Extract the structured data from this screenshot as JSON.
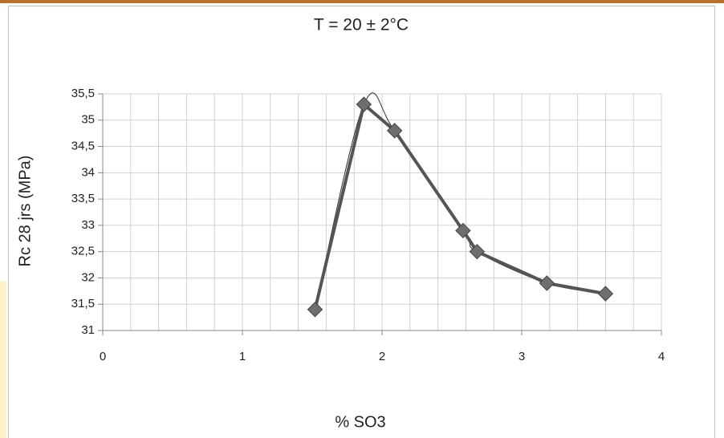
{
  "chart_data": {
    "type": "line",
    "title": "T = 20 ± 2°C",
    "xlabel": "% SO3",
    "ylabel": "Rc 28 jrs (MPa)",
    "x": [
      1.52,
      1.87,
      2.09,
      2.58,
      2.68,
      3.18,
      3.6
    ],
    "series": [
      {
        "color": "#555555",
        "marker_color": "#6e6e6e",
        "values": [
          31.4,
          35.3,
          34.8,
          32.9,
          32.5,
          31.9,
          31.7
        ]
      }
    ],
    "trendline": true,
    "xlim": [
      0,
      4
    ],
    "xticks": [
      0,
      1,
      2,
      3,
      4
    ],
    "xgrid_step": 0.2,
    "ylim": [
      31,
      35.5
    ],
    "yticks": [
      {
        "value": 31,
        "label": "31"
      },
      {
        "value": 31.5,
        "label": "31,5"
      },
      {
        "value": 32,
        "label": "32"
      },
      {
        "value": 32.5,
        "label": "32,5"
      },
      {
        "value": 33,
        "label": "33"
      },
      {
        "value": 33.5,
        "label": "33,5"
      },
      {
        "value": 34,
        "label": "34"
      },
      {
        "value": 34.5,
        "label": "34,5"
      },
      {
        "value": 35,
        "label": "35"
      },
      {
        "value": 35.5,
        "label": "35,5"
      }
    ],
    "grid": true
  }
}
